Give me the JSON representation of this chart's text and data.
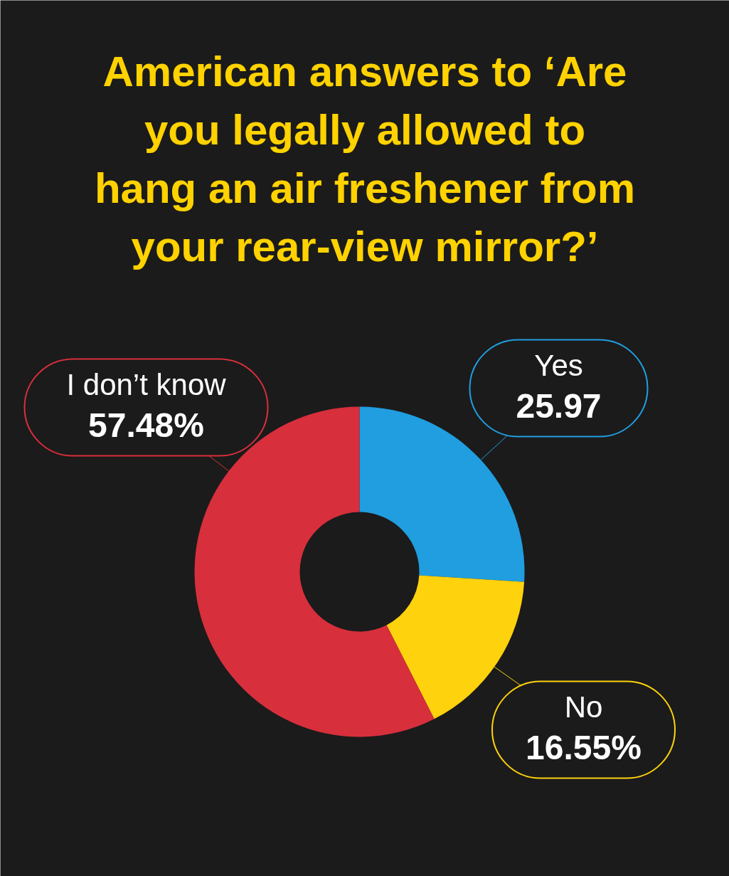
{
  "chart_data": {
    "type": "donut",
    "title": "American answers to ‘Are you legally allowed to hang an air freshener from your rear-view mirror?’",
    "categories": [
      "Yes",
      "No",
      "I don’t know"
    ],
    "values": [
      25.97,
      16.55,
      57.48
    ],
    "colors": [
      "#209ee0",
      "#fed20c",
      "#d82f3c"
    ],
    "value_labels": [
      "25.97",
      "16.55%",
      "57.48%"
    ]
  }
}
